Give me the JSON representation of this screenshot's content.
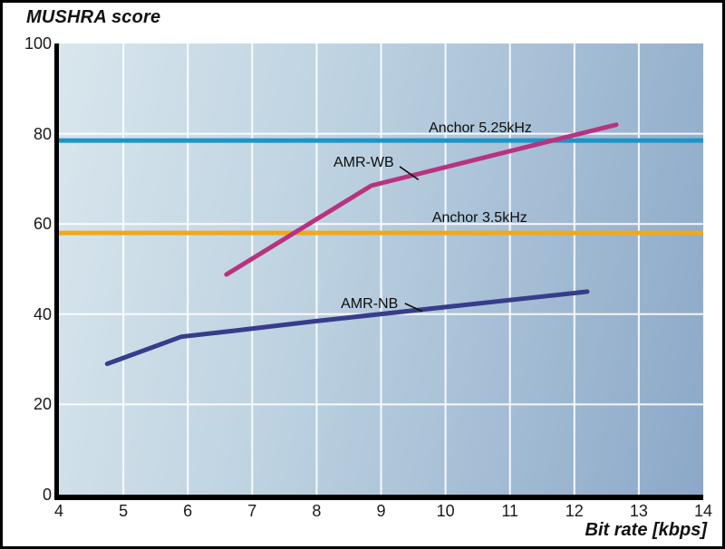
{
  "page": {
    "title": "MUSHRA score",
    "x_axis_label": "Bit rate [kbps]"
  },
  "colors": {
    "axis": "#000000",
    "grid": "#ffffff",
    "text": "#1a1a1a",
    "plot_bg_start": "#d9e6ed",
    "plot_bg_end": "#8ca8c8",
    "anchor_525": "#1b96c8",
    "amr_wb": "#b8337f",
    "anchor_35": "#efa91e",
    "amr_nb": "#373c8b"
  },
  "chart_data": {
    "type": "line",
    "title": "MUSHRA score",
    "xlabel": "Bit rate [kbps]",
    "ylabel": "MUSHRA score",
    "xlim": [
      4,
      14
    ],
    "ylim": [
      0,
      100
    ],
    "x_ticks": [
      4,
      5,
      6,
      7,
      8,
      9,
      10,
      11,
      12,
      13,
      14
    ],
    "y_ticks": [
      0,
      20,
      40,
      60,
      80,
      100
    ],
    "grid": true,
    "legend_position": "inline-annotations",
    "series": [
      {
        "name": "Anchor 5.25kHz",
        "color": "#1b96c8",
        "points": [
          [
            4,
            78.5
          ],
          [
            14,
            78.5
          ]
        ],
        "label": {
          "text": "Anchor 5.25kHz",
          "x": 10.54,
          "y": 81.2,
          "leader": null
        }
      },
      {
        "name": "Anchor 3.5kHz",
        "color": "#efa91e",
        "points": [
          [
            4,
            58
          ],
          [
            14,
            58
          ]
        ],
        "label": {
          "text": "Anchor 3.5kHz",
          "x": 10.53,
          "y": 61.2,
          "leader": null
        }
      },
      {
        "name": "AMR-NB",
        "color": "#373c8b",
        "points": [
          [
            4.75,
            29
          ],
          [
            5.9,
            35
          ],
          [
            6.7,
            36.3
          ],
          [
            7.95,
            38.4
          ],
          [
            10.2,
            41.9
          ],
          [
            12.2,
            45
          ]
        ],
        "label": {
          "text": "AMR-NB",
          "x": 8.82,
          "y": 42.2,
          "leader": [
            [
              9.37,
              42.4
            ],
            [
              9.64,
              40.6
            ]
          ]
        }
      },
      {
        "name": "AMR-WB",
        "color": "#b8337f",
        "points": [
          [
            6.6,
            48.8
          ],
          [
            8.85,
            68.5
          ],
          [
            12.65,
            82
          ]
        ],
        "label": {
          "text": "AMR-WB",
          "x": 8.73,
          "y": 73.4,
          "leader": [
            [
              9.29,
              72.7
            ],
            [
              9.58,
              69.8
            ]
          ]
        }
      }
    ]
  }
}
